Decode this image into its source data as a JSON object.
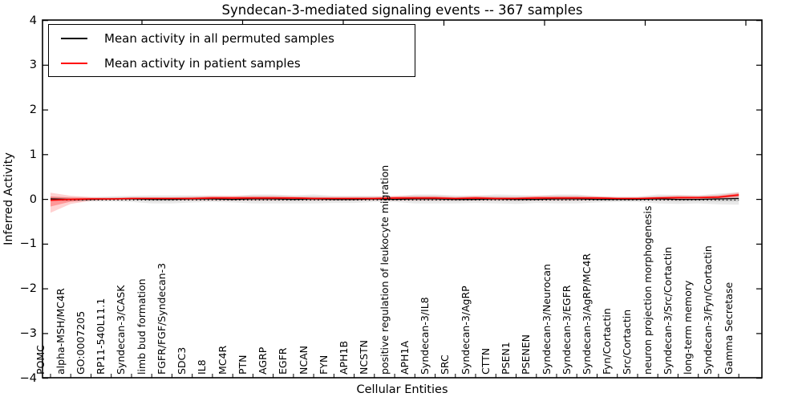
{
  "figure": {
    "title": "Syndecan-3-mediated signaling events -- 367 samples",
    "xlabel": "Cellular Entities",
    "ylabel": "Inferred Activity"
  },
  "legend": {
    "entries": [
      {
        "label": "Mean activity in all permuted samples",
        "color": "#000000"
      },
      {
        "label": "Mean activity in patient samples",
        "color": "#ff0000"
      }
    ]
  },
  "chart_data": {
    "type": "line",
    "title": "Syndecan-3-mediated signaling events -- 367 samples",
    "xlabel": "Cellular Entities",
    "ylabel": "Inferred Activity",
    "ylim": [
      -4,
      4
    ],
    "ytick_values": [
      4,
      3,
      2,
      1,
      0,
      -1,
      -2,
      -3,
      -4
    ],
    "ytick_labels": [
      "4",
      "3",
      "2",
      "1",
      "0",
      "−1",
      "−2",
      "−3",
      "−4"
    ],
    "grid": false,
    "legend_position": "upper left",
    "categories": [
      "POMC",
      "alpha-MSH/MC4R",
      "GO:0007205",
      "RP11-540L11.1",
      "Syndecan-3/CASK",
      "limb bud formation",
      "FGFR/FGF/Syndecan-3",
      "SDC3",
      "IL8",
      "MC4R",
      "PTN",
      "AGRP",
      "EGFR",
      "NCAN",
      "FYN",
      "APH1B",
      "NCSTN",
      "positive regulation of leukocyte migration",
      "APH1A",
      "Syndecan-3/IL8",
      "SRC",
      "Syndecan-3/AgRP",
      "CTTN",
      "PSEN1",
      "PSENEN",
      "Syndecan-3/Neurocan",
      "Syndecan-3/EGFR",
      "Syndecan-3/AgRP/MC4R",
      "Fyn/Cortactin",
      "Src/Cortactin",
      "neuron projection morphogenesis",
      "Syndecan-3/Src/Cortactin",
      "long-term memory",
      "Syndecan-3/Fyn/Cortactin",
      "Gamma Secretase"
    ],
    "series": [
      {
        "name": "Mean activity in all permuted samples",
        "color": "#000000",
        "style": "solid",
        "values": [
          0.01,
          0.0,
          0.0,
          0.01,
          0.01,
          0.0,
          0.0,
          0.01,
          0.01,
          0.0,
          0.01,
          0.01,
          0.0,
          0.01,
          0.0,
          0.0,
          0.01,
          0.0,
          0.01,
          0.01,
          0.0,
          0.0,
          0.01,
          0.0,
          0.0,
          0.01,
          0.01,
          0.0,
          0.0,
          0.0,
          0.01,
          0.0,
          0.0,
          0.01,
          0.02
        ]
      },
      {
        "name": "Mean activity in patient samples",
        "color": "#ff0000",
        "style": "solid",
        "values": [
          -0.02,
          0.0,
          0.01,
          0.01,
          0.02,
          0.02,
          0.02,
          0.02,
          0.03,
          0.03,
          0.03,
          0.03,
          0.03,
          0.02,
          0.02,
          0.02,
          0.02,
          0.03,
          0.03,
          0.03,
          0.02,
          0.03,
          0.02,
          0.02,
          0.03,
          0.03,
          0.03,
          0.03,
          0.02,
          0.02,
          0.03,
          0.04,
          0.04,
          0.05,
          0.1
        ]
      }
    ],
    "reference_line": {
      "value": 0,
      "style": "dotted",
      "color": "#000000"
    },
    "bands": [
      {
        "name": "permuted samples spread",
        "color": "#999999",
        "half_widths": [
          0.05,
          0.05,
          0.05,
          0.06,
          0.07,
          0.09,
          0.09,
          0.08,
          0.07,
          0.07,
          0.1,
          0.1,
          0.09,
          0.1,
          0.08,
          0.08,
          0.07,
          0.06,
          0.1,
          0.1,
          0.09,
          0.08,
          0.1,
          0.1,
          0.08,
          0.1,
          0.1,
          0.07,
          0.06,
          0.06,
          0.1,
          0.1,
          0.09,
          0.12,
          0.14
        ]
      },
      {
        "name": "patient samples spread",
        "color": "#ff0000",
        "upper": [
          0.17,
          0.08,
          0.04,
          0.03,
          0.03,
          0.03,
          0.03,
          0.04,
          0.05,
          0.05,
          0.05,
          0.05,
          0.04,
          0.04,
          0.04,
          0.04,
          0.04,
          0.05,
          0.05,
          0.05,
          0.04,
          0.05,
          0.04,
          0.04,
          0.05,
          0.05,
          0.05,
          0.04,
          0.03,
          0.03,
          0.04,
          0.05,
          0.04,
          0.05,
          0.06
        ],
        "lower": [
          0.28,
          0.1,
          0.04,
          0.03,
          0.03,
          0.03,
          0.03,
          0.04,
          0.05,
          0.05,
          0.05,
          0.05,
          0.04,
          0.04,
          0.04,
          0.04,
          0.04,
          0.05,
          0.05,
          0.05,
          0.04,
          0.05,
          0.04,
          0.04,
          0.05,
          0.05,
          0.05,
          0.04,
          0.03,
          0.03,
          0.04,
          0.05,
          0.04,
          0.05,
          0.06
        ]
      }
    ]
  }
}
